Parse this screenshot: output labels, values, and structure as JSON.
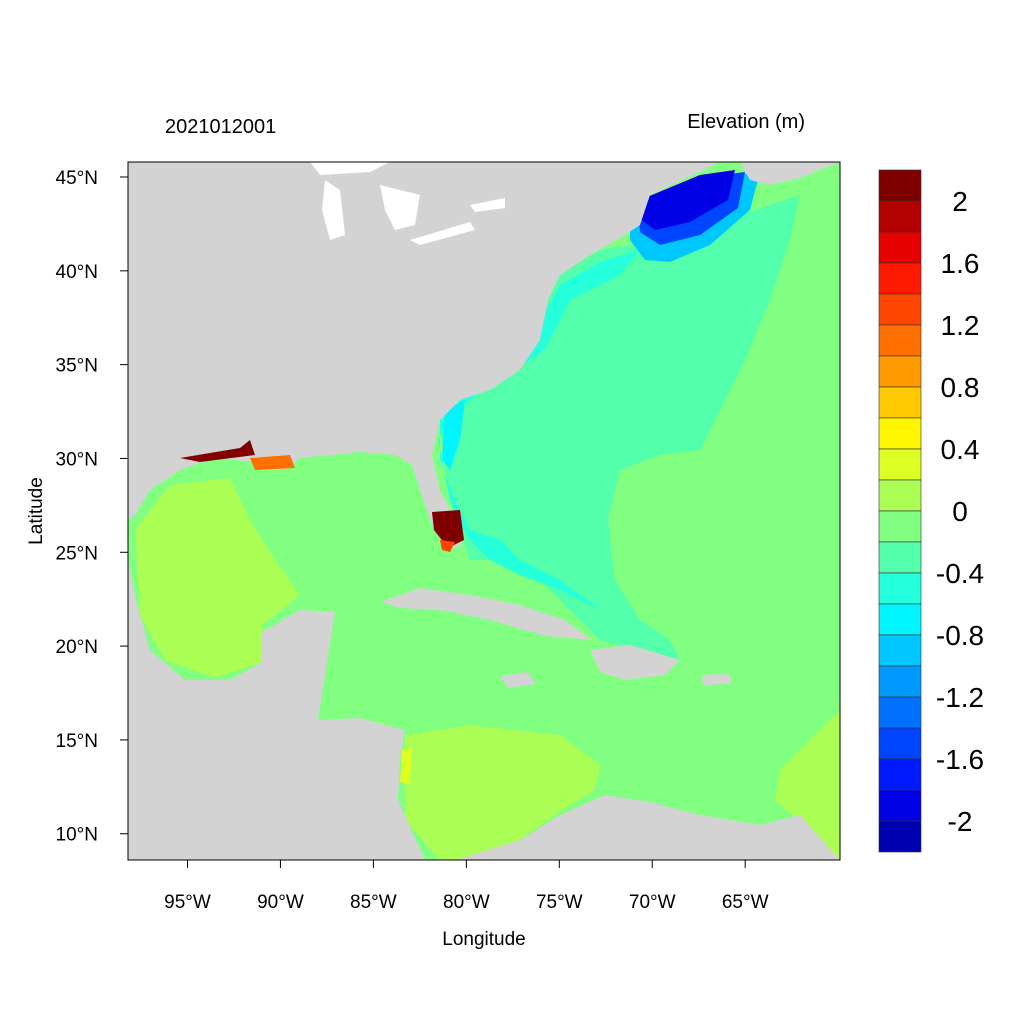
{
  "title_left": "2021012001",
  "title_right": "Elevation (m)",
  "x_axis": {
    "label": "Longitude",
    "ticks": [
      "95°W",
      "90°W",
      "85°W",
      "80°W",
      "75°W",
      "70°W",
      "65°W"
    ],
    "tick_values": [
      -95,
      -90,
      -85,
      -80,
      -75,
      -70,
      -65
    ]
  },
  "y_axis": {
    "label": "Latitude",
    "ticks": [
      "45°N",
      "40°N",
      "35°N",
      "30°N",
      "25°N",
      "20°N",
      "15°N",
      "10°N"
    ],
    "tick_values": [
      45,
      40,
      35,
      30,
      25,
      20,
      15,
      10
    ]
  },
  "extent": {
    "lon": [
      -98.2,
      -59.9
    ],
    "lat": [
      8.6,
      45.8
    ]
  },
  "colorbar": {
    "labels": [
      "2",
      "1.6",
      "1.2",
      "0.8",
      "0.4",
      "0",
      "-0.4",
      "-0.8",
      "-1.2",
      "-1.6",
      "-2"
    ],
    "range": [
      -2.2,
      2.2
    ],
    "step": 0.2,
    "colors": [
      "#800000",
      "#B30000",
      "#E60000",
      "#FF1A00",
      "#FF4500",
      "#FF7000",
      "#FF9A00",
      "#FFC800",
      "#FFF500",
      "#DCFF24",
      "#ABFF54",
      "#80FF80",
      "#54FFAB",
      "#24FFDC",
      "#00F5FF",
      "#00C8FF",
      "#009AFF",
      "#0070FF",
      "#0045FF",
      "#001AFF",
      "#0000E6",
      "#0000B3"
    ]
  },
  "colors": {
    "land": "#D3D3D3",
    "lakes": "#FFFFFF"
  }
}
